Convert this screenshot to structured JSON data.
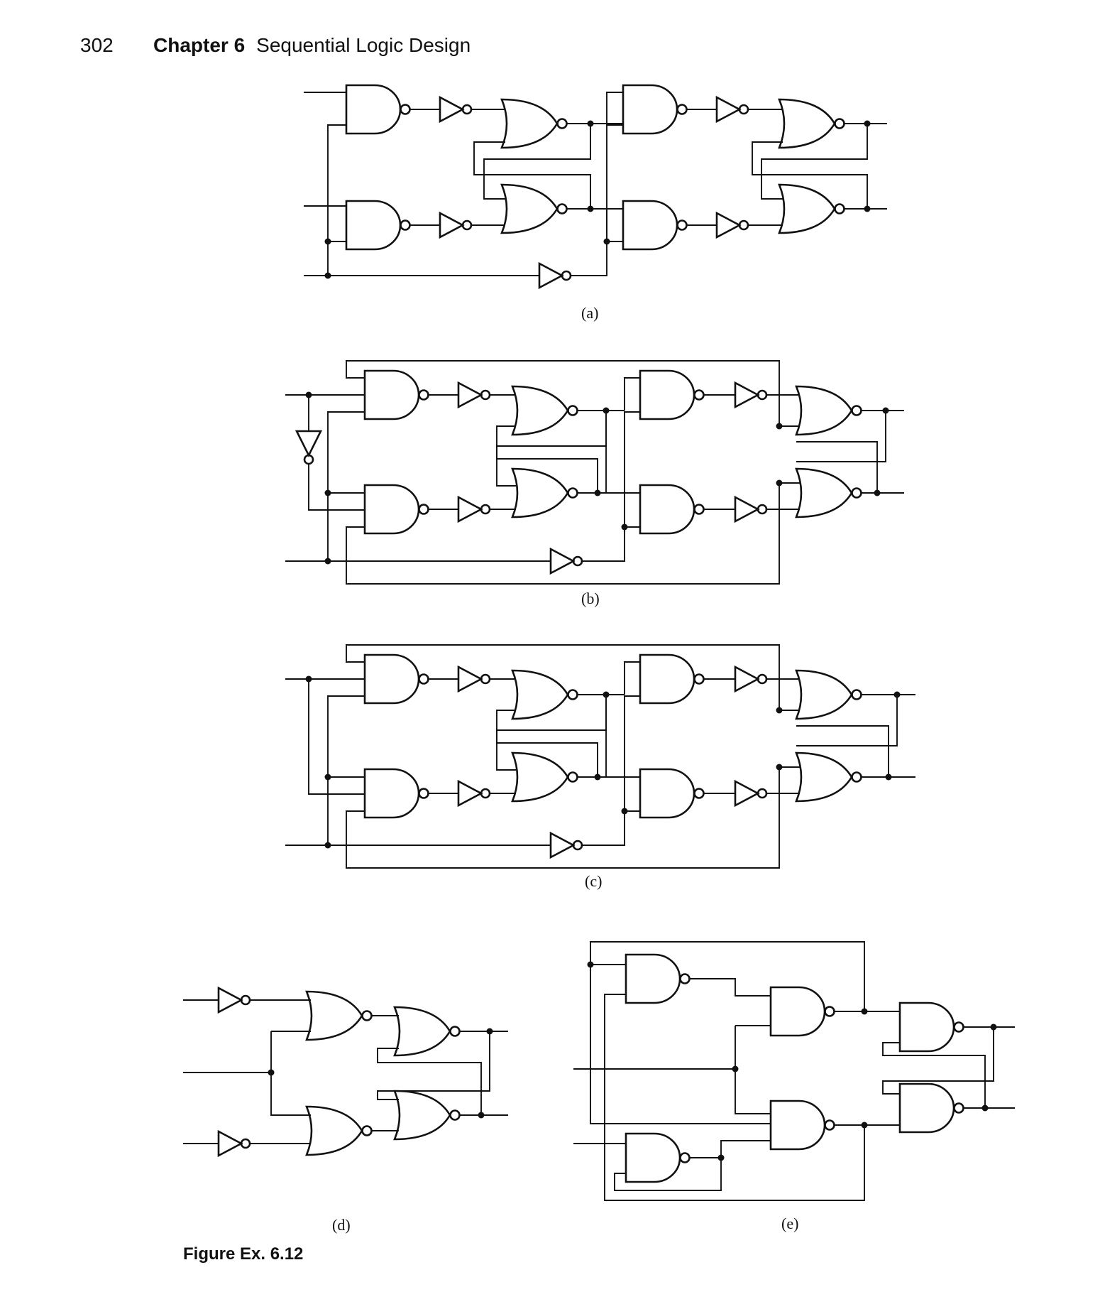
{
  "header": {
    "page_number": "302",
    "chapter_label": "Chapter 6",
    "chapter_title": "Sequential Logic Design"
  },
  "subfigures": [
    {
      "id": "a",
      "label": "(a)"
    },
    {
      "id": "b",
      "label": "(b)"
    },
    {
      "id": "c",
      "label": "(c)"
    },
    {
      "id": "d",
      "label": "(d)"
    },
    {
      "id": "e",
      "label": "(e)"
    }
  ],
  "figure_caption": "Figure Ex. 6.12"
}
